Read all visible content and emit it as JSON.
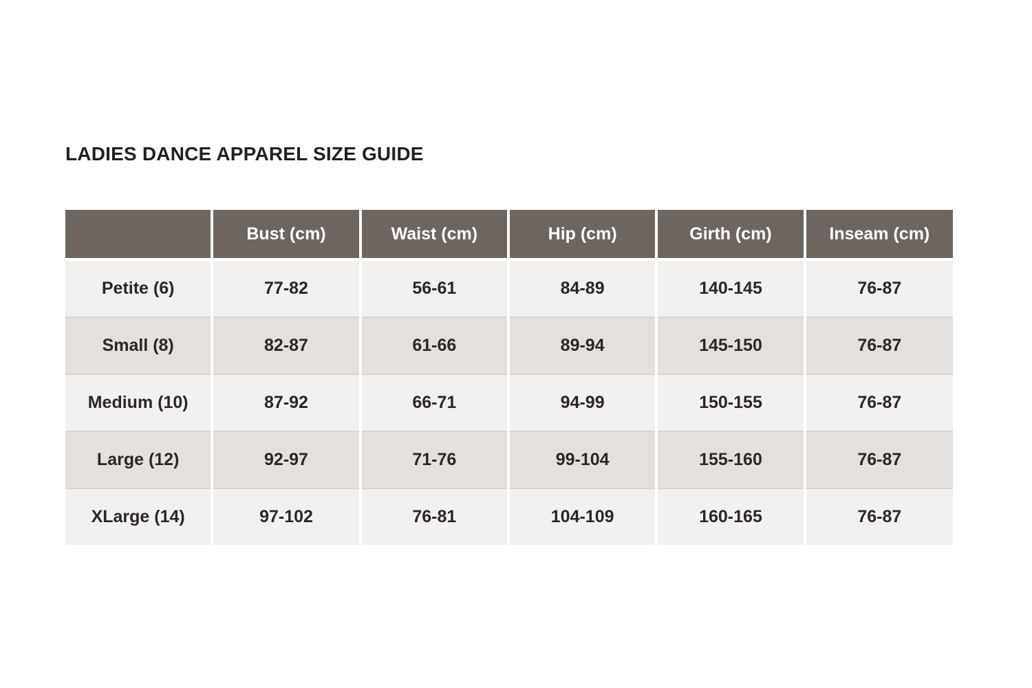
{
  "page": {
    "title": "LADIES DANCE APPAREL SIZE GUIDE"
  },
  "colors": {
    "header_background": "#6d6560",
    "header_text": "#ffffff",
    "row_light": "#f2f1f0",
    "row_dark": "#e3e0dd",
    "row_divider": "#d8d4d2",
    "body_text": "#2b2727",
    "page_background": "#ffffff"
  },
  "table": {
    "columns": [
      "",
      "Bust (cm)",
      "Waist (cm)",
      "Hip (cm)",
      "Girth (cm)",
      "Inseam (cm)"
    ],
    "rows": [
      {
        "cells": [
          "Petite (6)",
          "77-82",
          "56-61",
          "84-89",
          "140-145",
          "76-87"
        ]
      },
      {
        "cells": [
          "Small (8)",
          "82-87",
          "61-66",
          "89-94",
          "145-150",
          "76-87"
        ]
      },
      {
        "cells": [
          "Medium (10)",
          "87-92",
          "66-71",
          "94-99",
          "150-155",
          "76-87"
        ]
      },
      {
        "cells": [
          "Large (12)",
          "92-97",
          "71-76",
          "99-104",
          "155-160",
          "76-87"
        ]
      },
      {
        "cells": [
          "XLarge (14)",
          "97-102",
          "76-81",
          "104-109",
          "160-165",
          "76-87"
        ]
      }
    ]
  }
}
